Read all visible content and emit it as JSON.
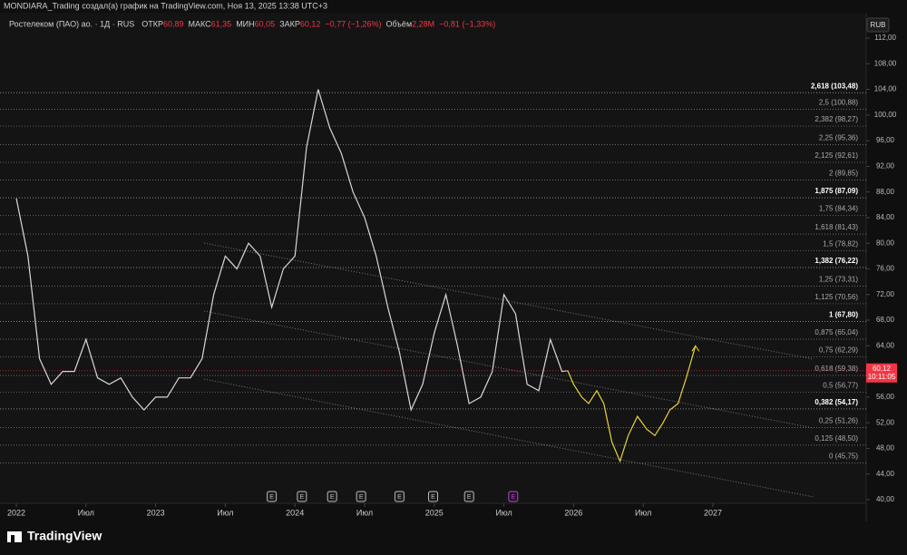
{
  "header": {
    "attribution": "MONDIARA_Trading создал(а) график на TradingView.com, Ноя 13, 2025 13:38 UTC+3",
    "symbol": "Ростелеком (ПАО) ао. · 1Д · RUS",
    "stats": [
      {
        "label": "ОТКР",
        "value": "60,89"
      },
      {
        "label": "МАКС",
        "value": "61,35"
      },
      {
        "label": "МИН",
        "value": "60,05"
      },
      {
        "label": "ЗАКР",
        "value": "60,12"
      },
      {
        "label": "",
        "value": "−0,77 (−1,26%)"
      },
      {
        "label": "Объём",
        "value": "2,28M"
      },
      {
        "label": "",
        "value": "−0,81 (−1,33%)"
      }
    ]
  },
  "currency": "RUB",
  "brand": "TradingView",
  "chart_data": {
    "type": "line",
    "ylim": [
      40,
      112
    ],
    "yticks": [
      {
        "value": 40,
        "label": "40,00"
      },
      {
        "value": 44,
        "label": "44,00"
      },
      {
        "value": 48,
        "label": "48,00"
      },
      {
        "value": 52,
        "label": "52,00"
      },
      {
        "value": 56,
        "label": "56,00"
      },
      {
        "value": 60,
        "label": "60,00"
      },
      {
        "value": 64,
        "label": "64,00"
      },
      {
        "value": 68,
        "label": "68,00"
      },
      {
        "value": 72,
        "label": "72,00"
      },
      {
        "value": 76,
        "label": "76,00"
      },
      {
        "value": 80,
        "label": "80,00"
      },
      {
        "value": 84,
        "label": "84,00"
      },
      {
        "value": 88,
        "label": "88,00"
      },
      {
        "value": 92,
        "label": "92,00"
      },
      {
        "value": 96,
        "label": "96,00"
      },
      {
        "value": 100,
        "label": "100,00"
      },
      {
        "value": 104,
        "label": "104,00"
      },
      {
        "value": 108,
        "label": "108,00"
      },
      {
        "value": 112,
        "label": "112,00"
      }
    ],
    "xticks": [
      {
        "value": 0,
        "label": "2022"
      },
      {
        "value": 6,
        "label": "Июл"
      },
      {
        "value": 12,
        "label": "2023"
      },
      {
        "value": 18,
        "label": "Июл"
      },
      {
        "value": 24,
        "label": "2024"
      },
      {
        "value": 30,
        "label": "Июл"
      },
      {
        "value": 36,
        "label": "2025"
      },
      {
        "value": 42,
        "label": "Июл"
      },
      {
        "value": 48,
        "label": "2026"
      },
      {
        "value": 54,
        "label": "Июл"
      },
      {
        "value": 60,
        "label": "2027"
      }
    ],
    "series": [
      {
        "color": "#d8d8d8",
        "x": [
          0,
          1,
          2,
          3,
          4,
          5,
          6,
          7,
          8,
          9,
          10,
          11,
          12,
          13,
          14,
          15,
          16,
          17,
          18,
          19,
          20,
          21,
          22,
          23,
          24,
          25,
          26,
          27,
          28,
          29,
          30,
          31,
          32,
          33,
          34,
          35,
          36,
          37,
          38,
          39,
          40,
          41,
          42,
          43,
          44,
          45,
          46,
          47,
          47.5
        ],
        "values": [
          87,
          78,
          62,
          58,
          60,
          60,
          65,
          59,
          58,
          59,
          56,
          54,
          56,
          56,
          59,
          59,
          62,
          72,
          78,
          76,
          80,
          78,
          70,
          76,
          78,
          95,
          104,
          98,
          94,
          88,
          84,
          78,
          70,
          63,
          54,
          58,
          66,
          72,
          64,
          55,
          56,
          60,
          72,
          69,
          58,
          57,
          65,
          60,
          60.12
        ]
      },
      {
        "color": "#e6d23c",
        "x": [
          47.5,
          48,
          48.7,
          49.3,
          50,
          50.6,
          51.3,
          52,
          52.7,
          53.5,
          54.3,
          55,
          55.7,
          56.3,
          57,
          57.7,
          58.5
        ],
        "values": [
          60.12,
          58,
          56,
          55,
          57,
          55,
          49,
          46,
          50,
          53,
          51,
          50,
          52,
          54,
          55,
          59,
          64
        ]
      }
    ],
    "fib": {
      "color": "#8a8a8a",
      "levels": [
        {
          "label": "2,618 (103,48)",
          "value": 103.48,
          "bold": true
        },
        {
          "label": "2,5 (100,88)",
          "value": 100.88,
          "bold": false
        },
        {
          "label": "2,382 (98,27)",
          "value": 98.27,
          "bold": false
        },
        {
          "label": "2,25 (95,36)",
          "value": 95.36,
          "bold": false
        },
        {
          "label": "2,125 (92,61)",
          "value": 92.61,
          "bold": false
        },
        {
          "label": "2 (89,85)",
          "value": 89.85,
          "bold": false
        },
        {
          "label": "1,875 (87,09)",
          "value": 87.09,
          "bold": true
        },
        {
          "label": "1,75 (84,34)",
          "value": 84.34,
          "bold": false
        },
        {
          "label": "1,618 (81,43)",
          "value": 81.43,
          "bold": false
        },
        {
          "label": "1,5 (78,82)",
          "value": 78.82,
          "bold": false
        },
        {
          "label": "1,382 (76,22)",
          "value": 76.22,
          "bold": true
        },
        {
          "label": "1,25 (73,31)",
          "value": 73.31,
          "bold": false
        },
        {
          "label": "1,125 (70,56)",
          "value": 70.56,
          "bold": false
        },
        {
          "label": "1 (67,80)",
          "value": 67.8,
          "bold": true
        },
        {
          "label": "0,875 (65,04)",
          "value": 65.04,
          "bold": false
        },
        {
          "label": "0,75 (62,29)",
          "value": 62.29,
          "bold": false
        },
        {
          "label": "0,618 (59,38)",
          "value": 59.38,
          "bold": false
        },
        {
          "label": "0,5 (56,77)",
          "value": 56.77,
          "bold": false
        },
        {
          "label": "0,382 (54,17)",
          "value": 54.17,
          "bold": true
        },
        {
          "label": "0,25 (51,26)",
          "value": 51.26,
          "bold": false
        },
        {
          "label": "0,125 (48,50)",
          "value": 48.5,
          "bold": false
        },
        {
          "label": "0 (45,75)",
          "value": 45.75,
          "bold": false
        }
      ]
    },
    "earnings": {
      "label": "E",
      "x": [
        22,
        24.6,
        27.2,
        29.7,
        33,
        35.9,
        39
      ],
      "upcoming_x": 42.8,
      "upcoming_color": "#c040e0"
    },
    "last_price": {
      "value": 60.12,
      "label": "60,12",
      "countdown": "10:11:05",
      "color": "#f23645"
    }
  }
}
